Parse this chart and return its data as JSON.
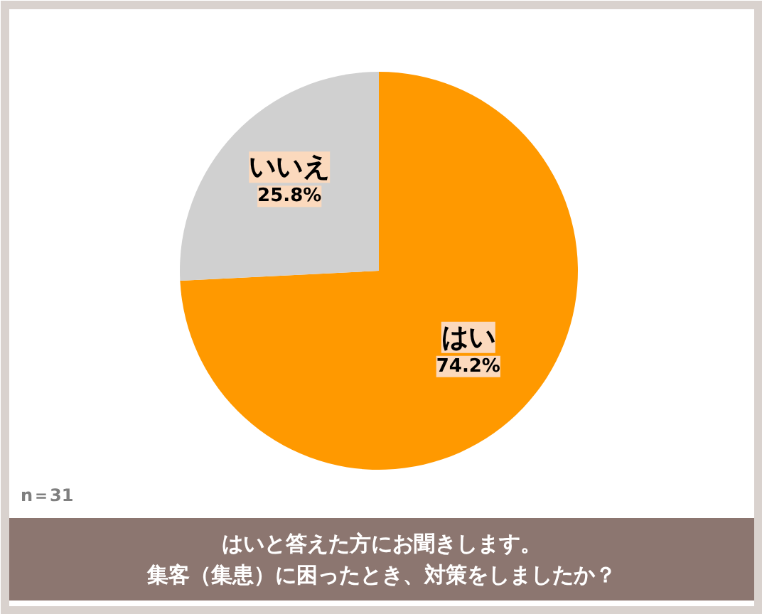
{
  "chart_data": {
    "type": "pie",
    "title": "はいと答えた方にお聞きします。",
    "subtitle": "集客（集患）に困ったとき、対策をしましたか？",
    "categories": [
      "はい",
      "いいえ"
    ],
    "values": [
      74.2,
      25.8
    ],
    "value_labels": [
      "74.2%",
      "25.8%"
    ],
    "colors": [
      "#ff9900",
      "#d0d0d0"
    ],
    "annotations": [
      "n＝31"
    ]
  }
}
